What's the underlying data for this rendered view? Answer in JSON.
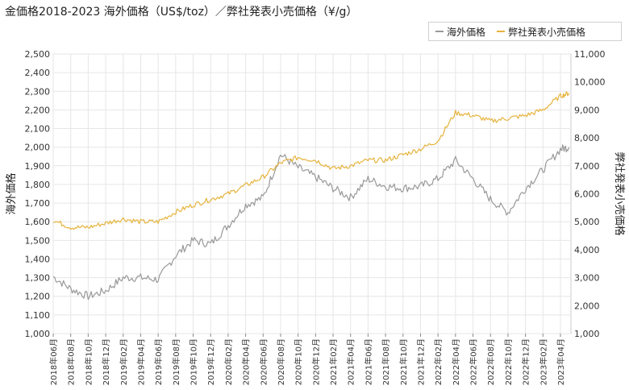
{
  "title": "金価格2018-2023 海外価格（US$/toz）／弊社発表小売価格（¥/g）",
  "legend": {
    "items": [
      {
        "label": "海外価格",
        "color": "#999999"
      },
      {
        "label": "弊社発表小売価格",
        "color": "#e6b33c"
      }
    ]
  },
  "chart_data": {
    "type": "line",
    "ylabel_left": "海外価格",
    "ylabel_right": "弊社発表小売価格",
    "y_left": {
      "min": 1000,
      "max": 2500,
      "ticks": [
        "1,000",
        "1,100",
        "1,200",
        "1,300",
        "1,400",
        "1,500",
        "1,600",
        "1,700",
        "1,800",
        "1,900",
        "2,000",
        "2,100",
        "2,200",
        "2,300",
        "2,400",
        "2,500"
      ]
    },
    "y_right": {
      "min": 1000,
      "max": 11000,
      "ticks": [
        "1,000",
        "2,000",
        "3,000",
        "4,000",
        "5,000",
        "6,000",
        "7,000",
        "8,000",
        "9,000",
        "10,000",
        "11,000"
      ]
    },
    "x_ticks": [
      "2018年06月",
      "2018年08月",
      "2018年10月",
      "2018年12月",
      "2019年02月",
      "2019年04月",
      "2019年06月",
      "2019年08月",
      "2019年10月",
      "2019年12月",
      "2020年02月",
      "2020年04月",
      "2020年06月",
      "2020年08月",
      "2020年10月",
      "2020年12月",
      "2021年02月",
      "2021年04月",
      "2021年06月",
      "2021年08月",
      "2021年10月",
      "2021年12月",
      "2022年02月",
      "2022年04月",
      "2022年06月",
      "2022年08月",
      "2022年10月",
      "2022年12月",
      "2023年02月",
      "2023年04月"
    ],
    "grid": true,
    "legend_position": "top-right",
    "series": [
      {
        "name": "海外価格",
        "axis": "left",
        "color": "#999999",
        "x": [
          0,
          1,
          2,
          3,
          4,
          5,
          6,
          7,
          8,
          9,
          10,
          11,
          12,
          13,
          14,
          15,
          16,
          17,
          18,
          19,
          20,
          21,
          22,
          23,
          24,
          25,
          26,
          27,
          28,
          29,
          29.5
        ],
        "values": [
          1305,
          1240,
          1200,
          1230,
          1300,
          1300,
          1290,
          1420,
          1500,
          1480,
          1580,
          1690,
          1730,
          1960,
          1890,
          1840,
          1780,
          1730,
          1830,
          1790,
          1780,
          1790,
          1830,
          1930,
          1830,
          1720,
          1650,
          1780,
          1880,
          1990,
          2000
        ]
      },
      {
        "name": "弊社発表小売価格",
        "axis": "right",
        "color": "#e6b33c",
        "x": [
          0,
          1,
          2,
          3,
          4,
          5,
          6,
          7,
          8,
          9,
          10,
          11,
          12,
          13,
          14,
          15,
          16,
          17,
          18,
          19,
          20,
          21,
          22,
          23,
          24,
          25,
          26,
          27,
          28,
          29,
          29.5
        ],
        "values": [
          5050,
          4800,
          4800,
          4950,
          5100,
          5000,
          5000,
          5350,
          5600,
          5800,
          6000,
          6300,
          6600,
          7100,
          7300,
          7200,
          6900,
          7000,
          7200,
          7200,
          7400,
          7600,
          7900,
          8900,
          8800,
          8600,
          8700,
          8800,
          9000,
          9500,
          9600
        ]
      }
    ]
  }
}
